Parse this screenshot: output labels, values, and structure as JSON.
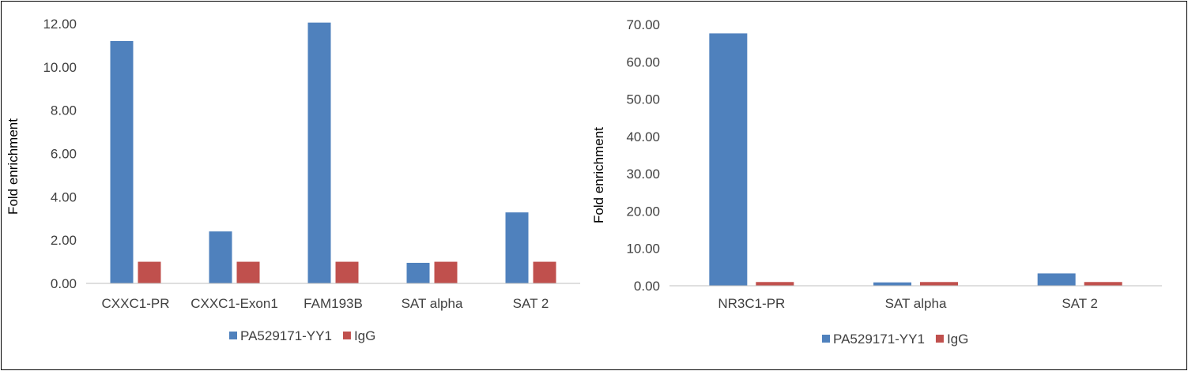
{
  "chart_data": [
    {
      "type": "bar",
      "categories": [
        "CXXC1-PR",
        "CXXC1-Exon1",
        "FAM193B",
        "SAT alpha",
        "SAT 2"
      ],
      "series": [
        {
          "name": "PA529171-YY1",
          "values": [
            11.2,
            2.4,
            12.05,
            0.95,
            3.28
          ],
          "color": "#4F81BD"
        },
        {
          "name": "IgG",
          "values": [
            1.0,
            1.0,
            1.0,
            1.0,
            1.0
          ],
          "color": "#C0504D"
        }
      ],
      "ylabel": "Fold enrichment",
      "ylim": [
        0,
        12
      ],
      "yticks": [
        "0.00",
        "2.00",
        "4.00",
        "6.00",
        "8.00",
        "10.00",
        "12.00"
      ],
      "grid": false,
      "legend": "bottom"
    },
    {
      "type": "bar",
      "categories": [
        "NR3C1-PR",
        "SAT alpha",
        "SAT 2"
      ],
      "series": [
        {
          "name": "PA529171-YY1",
          "values": [
            67.6,
            0.9,
            3.3
          ],
          "color": "#4F81BD"
        },
        {
          "name": "IgG",
          "values": [
            1.0,
            1.0,
            1.0
          ],
          "color": "#C0504D"
        }
      ],
      "ylabel": "Fold enrichment",
      "ylim": [
        0,
        70
      ],
      "yticks": [
        "0.00",
        "10.00",
        "20.00",
        "30.00",
        "40.00",
        "50.00",
        "60.00",
        "70.00"
      ],
      "grid": false,
      "legend": "bottom"
    }
  ]
}
